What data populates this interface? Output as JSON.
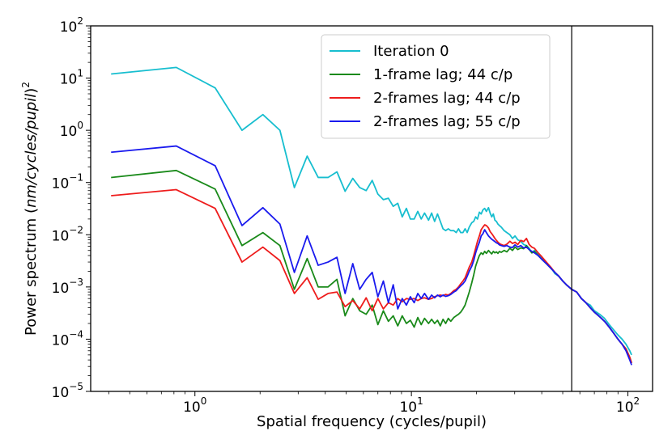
{
  "chart_data": {
    "type": "line",
    "xscale": "log",
    "yscale": "log",
    "xlim": [
      0.33,
      130
    ],
    "ylim": [
      1e-05,
      100
    ],
    "xlabel": "Spatial frequency (cycles/pupil)",
    "ylabel_prefix": "Power spectrum (",
    "ylabel_italic": "nm/cycles/pupil",
    "ylabel_suffix": ")",
    "ylabel_exponent": "2",
    "xticks": [
      {
        "value": 1,
        "base": "10",
        "exp": "0"
      },
      {
        "value": 10,
        "base": "10",
        "exp": "1"
      },
      {
        "value": 100,
        "base": "10",
        "exp": "2"
      }
    ],
    "yticks": [
      {
        "value": 1e-05,
        "base": "10",
        "exp": "−5"
      },
      {
        "value": 0.0001,
        "base": "10",
        "exp": "−4"
      },
      {
        "value": 0.001,
        "base": "10",
        "exp": "−3"
      },
      {
        "value": 0.01,
        "base": "10",
        "exp": "−2"
      },
      {
        "value": 0.1,
        "base": "10",
        "exp": "−1"
      },
      {
        "value": 1,
        "base": "10",
        "exp": "0"
      },
      {
        "value": 10,
        "base": "10",
        "exp": "1"
      },
      {
        "value": 100,
        "base": "10",
        "exp": "2"
      }
    ],
    "vline": {
      "x": 55,
      "color": "#000000"
    },
    "legend_position": "upper-center-right",
    "grid": false,
    "series": [
      {
        "name": "Iteration 0",
        "color": "#17becf",
        "x": [
          0.41,
          0.82,
          1.24,
          1.65,
          2.06,
          2.47,
          2.88,
          3.3,
          3.71,
          4.12,
          4.53,
          4.94,
          5.36,
          5.77,
          6.18,
          6.59,
          7.0,
          7.42,
          7.83,
          8.24,
          8.65,
          9.07,
          9.48,
          9.89,
          10.3,
          10.7,
          11.1,
          11.5,
          12.0,
          12.4,
          12.8,
          13.2,
          13.6,
          14.0,
          14.4,
          14.8,
          15.2,
          15.7,
          16.1,
          16.5,
          16.9,
          17.3,
          17.7,
          18.1,
          18.5,
          19.0,
          19.4,
          19.8,
          20.2,
          20.6,
          21.0,
          21.4,
          21.8,
          22.2,
          22.7,
          23.1,
          23.5,
          23.9,
          24.3,
          24.7,
          25.1,
          25.5,
          26.0,
          26.8,
          27.6,
          28.5,
          29.3,
          30.1,
          31.0,
          32.0,
          33.0,
          34.0,
          35.0,
          36.0,
          37.0,
          38.5,
          40.0,
          42.0,
          44.0,
          46.0,
          48.0,
          50.0,
          52.0,
          55.0,
          58.0,
          61.0,
          64.0,
          67.0,
          70.0,
          74.0,
          78.0,
          82.0,
          86.0,
          90.0,
          94.0,
          98.0,
          102.0,
          104.0
        ],
        "y": [
          12,
          16,
          6.5,
          1.0,
          2.0,
          1.0,
          0.08,
          0.32,
          0.125,
          0.125,
          0.16,
          0.068,
          0.12,
          0.08,
          0.07,
          0.11,
          0.06,
          0.047,
          0.05,
          0.035,
          0.04,
          0.022,
          0.032,
          0.02,
          0.02,
          0.028,
          0.02,
          0.026,
          0.019,
          0.026,
          0.018,
          0.025,
          0.018,
          0.013,
          0.012,
          0.013,
          0.012,
          0.012,
          0.011,
          0.013,
          0.011,
          0.011,
          0.013,
          0.011,
          0.014,
          0.017,
          0.018,
          0.022,
          0.02,
          0.027,
          0.025,
          0.03,
          0.032,
          0.028,
          0.033,
          0.026,
          0.022,
          0.025,
          0.019,
          0.018,
          0.016,
          0.015,
          0.014,
          0.012,
          0.011,
          0.01,
          0.0085,
          0.0095,
          0.008,
          0.0075,
          0.0065,
          0.0062,
          0.0055,
          0.0045,
          0.005,
          0.0042,
          0.0035,
          0.0028,
          0.0024,
          0.0018,
          0.0016,
          0.0013,
          0.0011,
          0.0009,
          0.0008,
          0.0006,
          0.0005,
          0.00045,
          0.00035,
          0.0003,
          0.00025,
          0.00019,
          0.00015,
          0.00012,
          0.0001,
          8e-05,
          6e-05,
          5e-05
        ]
      },
      {
        "name": "1-frame lag; 44 c/p",
        "color": "#1a8a1a",
        "x": [
          0.41,
          0.82,
          1.24,
          1.65,
          2.06,
          2.47,
          2.88,
          3.3,
          3.71,
          4.12,
          4.53,
          4.94,
          5.36,
          5.77,
          6.18,
          6.59,
          7.0,
          7.42,
          7.83,
          8.24,
          8.65,
          9.07,
          9.48,
          9.89,
          10.3,
          10.7,
          11.1,
          11.5,
          12.0,
          12.4,
          12.8,
          13.2,
          13.6,
          14.0,
          14.4,
          14.8,
          15.2,
          15.7,
          16.1,
          16.5,
          16.9,
          17.3,
          17.7,
          18.1,
          18.5,
          19.0,
          19.4,
          19.8,
          20.2,
          20.6,
          21.0,
          21.4,
          21.8,
          22.2,
          22.7,
          23.1,
          23.5,
          23.9,
          24.3,
          24.7,
          25.1,
          25.5,
          26.0,
          26.8,
          27.6,
          28.5,
          29.3,
          30.1,
          31.0,
          32.0,
          33.0,
          34.0,
          35.0,
          36.0,
          37.0,
          38.5,
          40.0,
          42.0,
          44.0,
          46.0,
          48.0,
          50.0,
          52.0,
          55.0,
          58.0,
          61.0,
          64.0,
          67.0,
          70.0,
          74.0,
          78.0,
          82.0,
          86.0,
          90.0,
          94.0,
          98.0,
          102.0,
          104.0
        ],
        "y": [
          0.125,
          0.17,
          0.075,
          0.0062,
          0.011,
          0.0062,
          0.0009,
          0.0035,
          0.001,
          0.001,
          0.0014,
          0.00028,
          0.0006,
          0.00035,
          0.0003,
          0.00045,
          0.00019,
          0.00035,
          0.00022,
          0.00028,
          0.00018,
          0.00028,
          0.0002,
          0.00023,
          0.00017,
          0.00026,
          0.00019,
          0.00025,
          0.0002,
          0.00024,
          0.0002,
          0.00023,
          0.00018,
          0.00024,
          0.0002,
          0.00025,
          0.00022,
          0.00026,
          0.00028,
          0.0003,
          0.00033,
          0.00038,
          0.00045,
          0.0006,
          0.0008,
          0.0012,
          0.0017,
          0.0025,
          0.0032,
          0.004,
          0.0045,
          0.0042,
          0.0048,
          0.0044,
          0.005,
          0.0046,
          0.0043,
          0.0048,
          0.0045,
          0.0047,
          0.0044,
          0.0048,
          0.0046,
          0.005,
          0.0047,
          0.0055,
          0.005,
          0.0058,
          0.0052,
          0.0056,
          0.0054,
          0.0062,
          0.0052,
          0.0045,
          0.0048,
          0.004,
          0.0034,
          0.0028,
          0.0023,
          0.0019,
          0.0016,
          0.0013,
          0.0011,
          0.0009,
          0.0008,
          0.0006,
          0.0005,
          0.0004,
          0.00033,
          0.00027,
          0.00022,
          0.00017,
          0.00013,
          0.0001,
          8e-05,
          6.5e-05,
          4.5e-05,
          3.5e-05
        ]
      },
      {
        "name": "2-frames lag; 44 c/p",
        "color": "#ee1c1c",
        "x": [
          0.41,
          0.82,
          1.24,
          1.65,
          2.06,
          2.47,
          2.88,
          3.3,
          3.71,
          4.12,
          4.53,
          4.94,
          5.36,
          5.77,
          6.18,
          6.59,
          7.0,
          7.42,
          7.83,
          8.24,
          8.65,
          9.07,
          9.48,
          9.89,
          10.3,
          10.7,
          11.1,
          11.5,
          12.0,
          12.4,
          12.8,
          13.2,
          13.6,
          14.0,
          14.4,
          14.8,
          15.2,
          15.7,
          16.1,
          16.5,
          16.9,
          17.3,
          17.7,
          18.1,
          18.5,
          19.0,
          19.4,
          19.8,
          20.2,
          20.6,
          21.0,
          21.4,
          21.8,
          22.2,
          22.7,
          23.1,
          23.5,
          23.9,
          24.3,
          24.7,
          25.1,
          25.5,
          26.0,
          26.8,
          27.6,
          28.5,
          29.3,
          30.1,
          31.0,
          32.0,
          33.0,
          34.0,
          35.0,
          36.0,
          37.0,
          38.5,
          40.0,
          42.0,
          44.0,
          46.0,
          48.0,
          50.0,
          52.0,
          55.0,
          58.0,
          61.0,
          64.0,
          67.0,
          70.0,
          74.0,
          78.0,
          82.0,
          86.0,
          90.0,
          94.0,
          98.0,
          102.0,
          104.0
        ],
        "y": [
          0.056,
          0.073,
          0.032,
          0.003,
          0.0058,
          0.0032,
          0.00075,
          0.0015,
          0.00058,
          0.00075,
          0.0008,
          0.00042,
          0.00055,
          0.00038,
          0.00062,
          0.00035,
          0.0006,
          0.00038,
          0.0005,
          0.00045,
          0.0006,
          0.00052,
          0.0006,
          0.00058,
          0.0006,
          0.00055,
          0.0006,
          0.00062,
          0.00058,
          0.0006,
          0.00065,
          0.00068,
          0.0007,
          0.00068,
          0.00072,
          0.0007,
          0.00075,
          0.00085,
          0.0009,
          0.001,
          0.00115,
          0.0013,
          0.0015,
          0.0019,
          0.0024,
          0.003,
          0.004,
          0.0055,
          0.0075,
          0.0095,
          0.0125,
          0.014,
          0.0155,
          0.015,
          0.0135,
          0.0115,
          0.0105,
          0.0095,
          0.0085,
          0.0078,
          0.0072,
          0.0068,
          0.0065,
          0.0062,
          0.0066,
          0.0075,
          0.0068,
          0.0072,
          0.0065,
          0.0078,
          0.0074,
          0.0085,
          0.0065,
          0.0058,
          0.0055,
          0.0045,
          0.0038,
          0.003,
          0.0024,
          0.0019,
          0.0016,
          0.0013,
          0.0011,
          0.0009,
          0.0008,
          0.0006,
          0.0005,
          0.0004,
          0.00033,
          0.00027,
          0.00022,
          0.00017,
          0.00013,
          0.0001,
          8e-05,
          6.5e-05,
          4.5e-05,
          3.5e-05
        ]
      },
      {
        "name": "2-frames lag; 55 c/p",
        "color": "#1a1aee",
        "x": [
          0.41,
          0.82,
          1.24,
          1.65,
          2.06,
          2.47,
          2.88,
          3.3,
          3.71,
          4.12,
          4.53,
          4.94,
          5.36,
          5.77,
          6.18,
          6.59,
          7.0,
          7.42,
          7.83,
          8.24,
          8.65,
          9.07,
          9.48,
          9.89,
          10.3,
          10.7,
          11.1,
          11.5,
          12.0,
          12.4,
          12.8,
          13.2,
          13.6,
          14.0,
          14.4,
          14.8,
          15.2,
          15.7,
          16.1,
          16.5,
          16.9,
          17.3,
          17.7,
          18.1,
          18.5,
          19.0,
          19.4,
          19.8,
          20.2,
          20.6,
          21.0,
          21.4,
          21.8,
          22.2,
          22.7,
          23.1,
          23.5,
          23.9,
          24.3,
          24.7,
          25.1,
          25.5,
          26.0,
          26.8,
          27.6,
          28.5,
          29.3,
          30.1,
          31.0,
          32.0,
          33.0,
          34.0,
          35.0,
          36.0,
          37.0,
          38.5,
          40.0,
          42.0,
          44.0,
          46.0,
          48.0,
          50.0,
          52.0,
          55.0,
          58.0,
          61.0,
          64.0,
          67.0,
          70.0,
          74.0,
          78.0,
          82.0,
          86.0,
          90.0,
          94.0,
          98.0,
          102.0,
          104.0
        ],
        "y": [
          0.38,
          0.5,
          0.21,
          0.015,
          0.033,
          0.016,
          0.0019,
          0.0095,
          0.0026,
          0.003,
          0.0037,
          0.00075,
          0.0028,
          0.0009,
          0.0014,
          0.0019,
          0.00065,
          0.0013,
          0.0005,
          0.0011,
          0.00038,
          0.0006,
          0.00045,
          0.00065,
          0.0005,
          0.00075,
          0.0006,
          0.00075,
          0.00058,
          0.0007,
          0.00062,
          0.0007,
          0.00065,
          0.0007,
          0.00066,
          0.00068,
          0.00072,
          0.0008,
          0.00085,
          0.00095,
          0.00105,
          0.00115,
          0.0013,
          0.0016,
          0.002,
          0.0025,
          0.0032,
          0.0045,
          0.0058,
          0.0072,
          0.0095,
          0.0105,
          0.0125,
          0.011,
          0.0095,
          0.0088,
          0.0082,
          0.0078,
          0.0074,
          0.007,
          0.0068,
          0.0064,
          0.0062,
          0.006,
          0.0062,
          0.0058,
          0.0057,
          0.0064,
          0.0058,
          0.0062,
          0.0056,
          0.0058,
          0.0052,
          0.0048,
          0.0045,
          0.004,
          0.0034,
          0.0028,
          0.0023,
          0.0019,
          0.0016,
          0.0013,
          0.0011,
          0.0009,
          0.0008,
          0.0006,
          0.0005,
          0.0004,
          0.00033,
          0.00027,
          0.00022,
          0.00017,
          0.00013,
          0.0001,
          8e-05,
          6e-05,
          4e-05,
          3.2e-05
        ]
      }
    ]
  }
}
